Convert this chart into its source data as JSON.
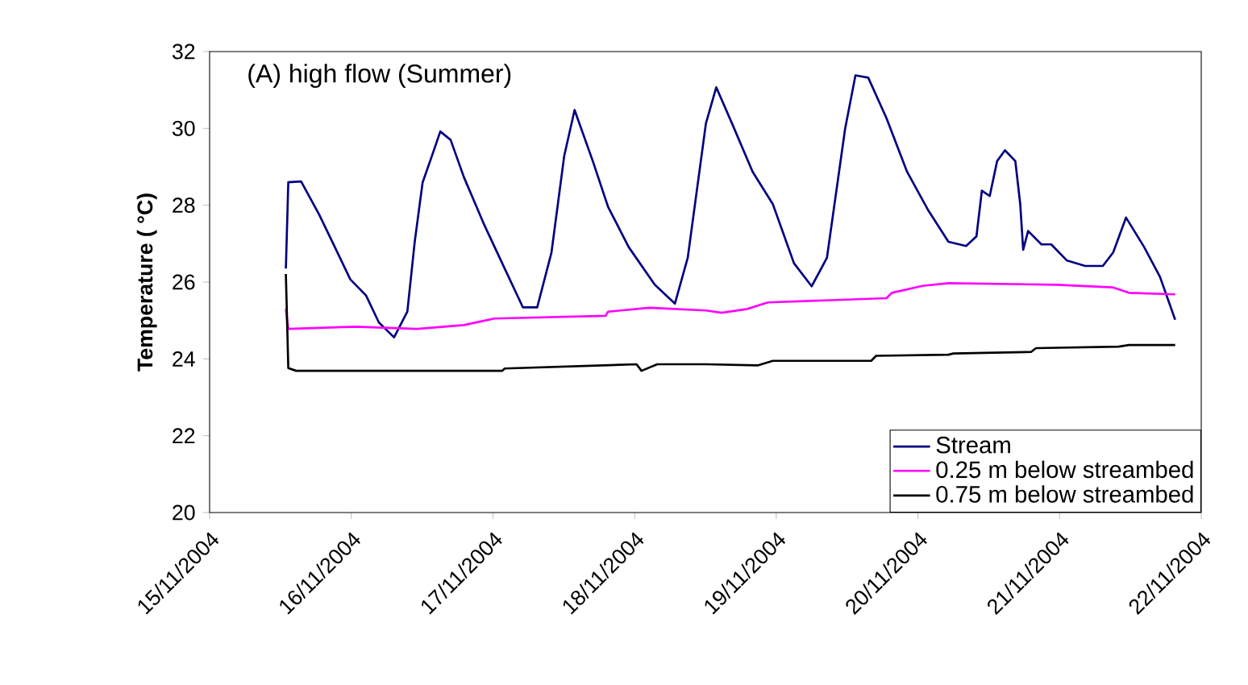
{
  "chart_data": {
    "type": "line",
    "title": "(A) high flow (Summer)",
    "ylabel": "Temperature ( °C)",
    "xlim": [
      "2004-11-15",
      "2004-11-22"
    ],
    "xticks": [
      {
        "value": "2004-11-15",
        "label": "15/11/2004"
      },
      {
        "value": "2004-11-16",
        "label": "16/11/2004"
      },
      {
        "value": "2004-11-17",
        "label": "17/11/2004"
      },
      {
        "value": "2004-11-18",
        "label": "18/11/2004"
      },
      {
        "value": "2004-11-19",
        "label": "19/11/2004"
      },
      {
        "value": "2004-11-20",
        "label": "20/11/2004"
      },
      {
        "value": "2004-11-21",
        "label": "21/11/2004"
      },
      {
        "value": "2004-11-22",
        "label": "22/11/2004"
      }
    ],
    "ylim": [
      20,
      32
    ],
    "yticks": [
      20,
      22,
      24,
      26,
      28,
      30,
      32
    ],
    "grid": false,
    "legend": "bottom right",
    "marker": "none",
    "line_style": "solid",
    "series": [
      {
        "name": "Stream",
        "color": "#000080",
        "x": [
          "2004-11-15T12:55",
          "2004-11-15T13:20",
          "2004-11-15T15:30",
          "2004-11-15T18:35",
          "2004-11-15T21:15",
          "2004-11-15T23:50",
          "2004-11-16T02:30",
          "2004-11-16T04:40",
          "2004-11-16T07:15",
          "2004-11-16T09:30",
          "2004-11-16T10:45",
          "2004-11-16T12:05",
          "2004-11-16T13:50",
          "2004-11-16T15:05",
          "2004-11-16T16:50",
          "2004-11-16T19:05",
          "2004-11-16T22:35",
          "2004-11-17T02:00",
          "2004-11-17T05:05",
          "2004-11-17T07:30",
          "2004-11-17T09:55",
          "2004-11-17T12:05",
          "2004-11-17T13:50",
          "2004-11-17T16:55",
          "2004-11-17T19:30",
          "2004-11-17T23:00",
          "2004-11-18T03:25",
          "2004-11-18T06:50",
          "2004-11-18T09:00",
          "2004-11-18T12:05",
          "2004-11-18T13:50",
          "2004-11-18T16:30",
          "2004-11-18T20:00",
          "2004-11-18T23:25",
          "2004-11-19T03:00",
          "2004-11-19T06:00",
          "2004-11-19T08:35",
          "2004-11-19T11:40",
          "2004-11-19T13:25",
          "2004-11-19T15:35",
          "2004-11-19T18:40",
          "2004-11-19T22:10",
          "2004-11-20T01:40",
          "2004-11-20T05:10",
          "2004-11-20T08:10",
          "2004-11-20T09:55",
          "2004-11-20T10:50",
          "2004-11-20T12:10",
          "2004-11-20T13:25",
          "2004-11-20T14:45",
          "2004-11-20T16:30",
          "2004-11-20T17:20",
          "2004-11-20T17:50",
          "2004-11-20T18:40",
          "2004-11-20T20:55",
          "2004-11-20T22:35",
          "2004-11-21T01:15",
          "2004-11-21T04:20",
          "2004-11-21T07:20",
          "2004-11-21T09:05",
          "2004-11-21T11:15",
          "2004-11-21T14:20",
          "2004-11-21T17:00",
          "2004-11-21T19:35"
        ],
        "values": [
          26.35,
          28.6,
          28.62,
          27.75,
          26.9,
          26.07,
          25.65,
          24.95,
          24.56,
          25.23,
          27.05,
          28.59,
          29.36,
          29.92,
          29.7,
          28.73,
          27.47,
          26.35,
          25.34,
          25.34,
          26.77,
          29.29,
          30.48,
          29.15,
          27.96,
          26.91,
          25.93,
          25.44,
          26.63,
          30.13,
          31.07,
          30.13,
          28.87,
          28.03,
          26.49,
          25.89,
          26.63,
          29.99,
          31.38,
          31.32,
          30.27,
          28.87,
          27.89,
          27.05,
          26.94,
          27.19,
          28.38,
          28.24,
          29.15,
          29.43,
          29.15,
          28.03,
          26.84,
          27.33,
          26.98,
          26.98,
          26.56,
          26.42,
          26.42,
          26.77,
          27.68,
          26.91,
          26.14,
          25.02
        ]
      },
      {
        "name": "0.25 m below streambed",
        "color": "#ff00ff",
        "x": [
          "2004-11-15T12:55",
          "2004-11-15T13:20",
          "2004-11-16T00:40",
          "2004-11-16T11:10",
          "2004-11-16T19:05",
          "2004-11-16T22:05",
          "2004-11-17T00:15",
          "2004-11-17T19:05",
          "2004-11-17T19:30",
          "2004-11-18T02:30",
          "2004-11-18T12:05",
          "2004-11-18T14:45",
          "2004-11-18T19:05",
          "2004-11-18T22:35",
          "2004-11-19T18:40",
          "2004-11-19T19:35",
          "2004-11-20T00:45",
          "2004-11-20T05:10",
          "2004-11-20T23:30",
          "2004-11-21T09:05",
          "2004-11-21T11:45",
          "2004-11-21T19:35"
        ],
        "values": [
          25.3,
          24.78,
          24.84,
          24.78,
          24.88,
          24.98,
          25.05,
          25.12,
          25.23,
          25.33,
          25.26,
          25.2,
          25.3,
          25.47,
          25.58,
          25.72,
          25.9,
          25.97,
          25.93,
          25.86,
          25.72,
          25.68
        ]
      },
      {
        "name": "0.75 m below streambed",
        "color": "#000000",
        "x": [
          "2004-11-15T12:55",
          "2004-11-15T13:20",
          "2004-11-15T14:40",
          "2004-11-17T01:35",
          "2004-11-17T02:00",
          "2004-11-18T00:20",
          "2004-11-18T01:10",
          "2004-11-18T03:50",
          "2004-11-18T12:05",
          "2004-11-18T20:50",
          "2004-11-18T23:25",
          "2004-11-19T16:05",
          "2004-11-19T16:55",
          "2004-11-20T05:10",
          "2004-11-20T06:00",
          "2004-11-20T19:10",
          "2004-11-20T20:00",
          "2004-11-21T10:00",
          "2004-11-21T11:45",
          "2004-11-21T19:35"
        ],
        "values": [
          26.21,
          23.76,
          23.69,
          23.69,
          23.75,
          23.86,
          23.69,
          23.86,
          23.86,
          23.83,
          23.95,
          23.95,
          24.08,
          24.11,
          24.14,
          24.18,
          24.28,
          24.32,
          24.36,
          24.36
        ]
      }
    ]
  }
}
